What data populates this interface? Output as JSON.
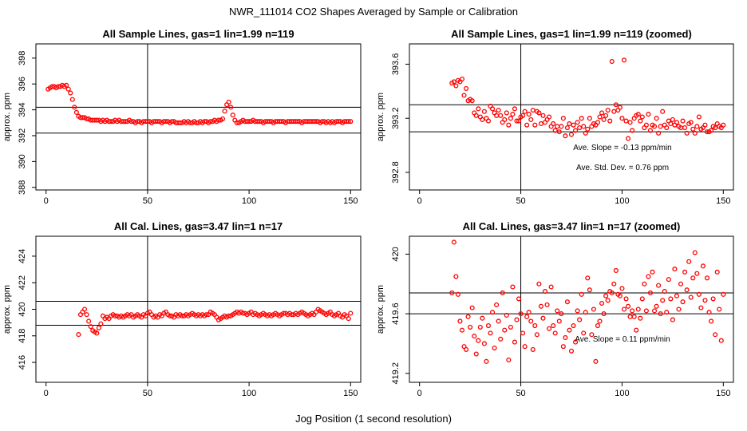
{
  "figure": {
    "title": "NWR_111014  CO2 Shapes Averaged by Sample or Calibration",
    "xlabel": "Jog Position (1 second resolution)"
  },
  "colors": {
    "points": "#ff0000",
    "lines": "#000000",
    "background": "#ffffff"
  },
  "chart_data": [
    {
      "type": "scatter",
      "title": "All Sample Lines, gas=1 lin=1.99 n=119",
      "xlabel": "",
      "ylabel": "approx. ppm",
      "xlim": [
        -5,
        155
      ],
      "ylim": [
        387.8,
        399.1
      ],
      "xticks": [
        0,
        50,
        100,
        150
      ],
      "yticks": [
        388,
        390,
        392,
        394,
        396,
        398
      ],
      "vline": 50,
      "hlines": [
        392.2,
        394.2
      ],
      "annotations": [],
      "series": [
        {
          "x_range": [
            1,
            150
          ],
          "y": [
            395.6,
            395.7,
            395.8,
            395.8,
            395.7,
            395.8,
            395.8,
            395.9,
            395.8,
            395.9,
            395.6,
            395.3,
            394.8,
            394.2,
            393.8,
            393.5,
            393.4,
            393.4,
            393.4,
            393.3,
            393.3,
            393.2,
            393.2,
            393.2,
            393.2,
            393.2,
            393.1,
            393.2,
            393.1,
            393.2,
            393.1,
            393.1,
            393.1,
            393.2,
            393.1,
            393.2,
            393.1,
            393.1,
            393.1,
            393.1,
            393.2,
            393.1,
            393.1,
            393.0,
            393.1,
            393.1,
            393.0,
            393.1,
            393.1,
            393.1,
            393.1,
            393.0,
            393.1,
            393.1,
            393.1,
            393.1,
            393.0,
            393.1,
            393.1,
            393.1,
            393.0,
            393.1,
            393.1,
            393.0,
            393.0,
            393.0,
            393.0,
            393.1,
            393.0,
            393.1,
            393.0,
            393.0,
            393.1,
            393.0,
            393.0,
            393.1,
            393.0,
            393.1,
            393.1,
            393.0,
            393.1,
            393.1,
            393.2,
            393.1,
            393.2,
            393.2,
            393.3,
            393.9,
            394.4,
            394.6,
            394.2,
            393.6,
            393.2,
            393.0,
            393.0,
            393.1,
            393.2,
            393.1,
            393.1,
            393.1,
            393.1,
            393.2,
            393.1,
            393.1,
            393.1,
            393.1,
            393.0,
            393.1,
            393.1,
            393.1,
            393.1,
            393.0,
            393.1,
            393.1,
            393.1,
            393.1,
            393.1,
            393.0,
            393.1,
            393.1,
            393.1,
            393.1,
            393.1,
            393.1,
            393.1,
            393.0,
            393.1,
            393.1,
            393.1,
            393.1,
            393.1,
            393.1,
            393.1,
            393.1,
            393.0,
            393.1,
            393.1,
            393.0,
            393.1,
            393.0,
            393.1,
            393.0,
            393.1,
            393.1,
            393.1,
            393.0,
            393.1,
            393.1,
            393.1,
            393.1
          ]
        }
      ]
    },
    {
      "type": "scatter",
      "title": "All Sample Lines, gas=1 lin=1.99 n=119 (zoomed)",
      "xlabel": "",
      "ylabel": "approx. ppm",
      "xlim": [
        -5,
        155
      ],
      "ylim": [
        392.67,
        393.75
      ],
      "xticks": [
        0,
        50,
        100,
        150
      ],
      "yticks": [
        392.8,
        393.2,
        393.6
      ],
      "vline": 50,
      "hlines": [
        393.1,
        393.3
      ],
      "annotations": [
        "Ave. Slope =  -0.13  ppm/min",
        "Ave. Std. Dev. =  0.76  ppm"
      ],
      "series": [
        {
          "x_range": [
            16,
            150
          ],
          "y": [
            393.46,
            393.47,
            393.44,
            393.48,
            393.47,
            393.49,
            393.37,
            393.42,
            393.33,
            393.34,
            393.33,
            393.24,
            393.22,
            393.27,
            393.21,
            393.19,
            393.25,
            393.2,
            393.18,
            393.29,
            393.27,
            393.24,
            393.22,
            393.26,
            393.22,
            393.17,
            393.19,
            393.24,
            393.15,
            393.2,
            393.23,
            393.27,
            393.18,
            393.18,
            393.21,
            393.22,
            393.25,
            393.15,
            393.23,
            393.19,
            393.26,
            393.15,
            393.25,
            393.24,
            393.16,
            393.22,
            393.17,
            393.19,
            393.21,
            393.14,
            393.16,
            393.11,
            393.14,
            393.1,
            393.14,
            393.2,
            393.07,
            393.13,
            393.16,
            393.08,
            393.15,
            393.11,
            393.17,
            393.13,
            393.2,
            393.14,
            393.09,
            393.12,
            393.2,
            393.14,
            393.16,
            393.15,
            393.17,
            393.21,
            393.24,
            393.19,
            393.22,
            393.26,
            393.18,
            393.62,
            393.25,
            393.3,
            393.26,
            393.28,
            393.2,
            393.63,
            393.18,
            393.05,
            393.17,
            393.11,
            393.2,
            393.22,
            393.23,
            393.18,
            393.21,
            393.13,
            393.15,
            393.23,
            393.11,
            393.15,
            393.14,
            393.2,
            393.09,
            393.14,
            393.25,
            393.15,
            393.13,
            393.18,
            393.16,
            393.19,
            393.15,
            393.17,
            393.14,
            393.13,
            393.18,
            393.13,
            393.09,
            393.16,
            393.17,
            393.12,
            393.09,
            393.14,
            393.21,
            393.12,
            393.13,
            393.15,
            393.1,
            393.1,
            393.11,
            393.14,
            393.13,
            393.16,
            393.14,
            393.13,
            393.15
          ]
        }
      ]
    },
    {
      "type": "scatter",
      "title": "All Cal. Lines, gas=3.47 lin=1 n=17",
      "xlabel": "",
      "ylabel": "approx. ppm",
      "xlim": [
        -5,
        155
      ],
      "ylim": [
        414.5,
        425.5
      ],
      "xticks": [
        0,
        50,
        100,
        150
      ],
      "yticks": [
        416,
        418,
        420,
        422,
        424
      ],
      "vline": 50,
      "hlines": [
        418.8,
        420.6
      ],
      "annotations": [],
      "series": [
        {
          "x_range": [
            16,
            150
          ],
          "y": [
            418.1,
            419.6,
            419.8,
            420.0,
            419.6,
            419.1,
            418.7,
            418.4,
            418.3,
            418.2,
            418.6,
            418.9,
            419.5,
            419.3,
            419.4,
            419.3,
            419.5,
            419.6,
            419.5,
            419.5,
            419.4,
            419.5,
            419.4,
            419.5,
            419.6,
            419.5,
            419.6,
            419.4,
            419.5,
            419.6,
            419.5,
            419.4,
            419.6,
            419.5,
            419.7,
            419.8,
            419.6,
            419.4,
            419.5,
            419.4,
            419.6,
            419.5,
            419.7,
            419.8,
            419.6,
            419.5,
            419.5,
            419.4,
            419.6,
            419.5,
            419.6,
            419.5,
            419.5,
            419.6,
            419.5,
            419.6,
            419.7,
            419.6,
            419.5,
            419.6,
            419.5,
            419.6,
            419.5,
            419.6,
            419.6,
            419.8,
            419.7,
            419.6,
            419.4,
            419.2,
            419.3,
            419.4,
            419.5,
            419.4,
            419.5,
            419.5,
            419.6,
            419.7,
            419.8,
            419.7,
            419.8,
            419.7,
            419.7,
            419.6,
            419.7,
            419.8,
            419.6,
            419.7,
            419.6,
            419.5,
            419.6,
            419.7,
            419.6,
            419.5,
            419.6,
            419.5,
            419.6,
            419.7,
            419.6,
            419.5,
            419.6,
            419.7,
            419.7,
            419.6,
            419.7,
            419.6,
            419.6,
            419.7,
            419.6,
            419.7,
            419.8,
            419.7,
            419.6,
            419.5,
            419.6,
            419.7,
            419.6,
            419.8,
            420.0,
            419.9,
            419.8,
            419.7,
            419.6,
            419.7,
            419.8,
            419.6,
            419.5,
            419.6,
            419.7,
            419.5,
            419.4,
            419.6,
            419.5,
            419.3,
            419.7
          ]
        }
      ]
    },
    {
      "type": "scatter",
      "title": "All Cal. Lines, gas=3.47 lin=1 n=17 (zoomed)",
      "xlabel": "",
      "ylabel": "approx. ppm",
      "xlim": [
        -5,
        155
      ],
      "ylim": [
        419.14,
        420.12
      ],
      "xticks": [
        0,
        50,
        100,
        150
      ],
      "yticks": [
        419.2,
        419.6,
        420.0
      ],
      "vline": 50,
      "hlines": [
        419.6,
        419.74
      ],
      "annotations": [
        "Ave. Slope =  0.11  ppm/min"
      ],
      "series": [
        {
          "x_range": [
            16,
            150
          ],
          "y": [
            419.74,
            420.08,
            419.85,
            419.73,
            419.55,
            419.49,
            419.38,
            419.36,
            419.58,
            419.51,
            419.64,
            419.45,
            419.33,
            419.42,
            419.51,
            419.57,
            419.4,
            419.28,
            419.52,
            419.47,
            419.61,
            419.37,
            419.66,
            419.55,
            419.43,
            419.74,
            419.49,
            419.59,
            419.29,
            419.51,
            419.78,
            419.41,
            419.56,
            419.7,
            419.6,
            419.47,
            419.38,
            419.58,
            419.61,
            419.55,
            419.36,
            419.52,
            419.46,
            419.8,
            419.65,
            419.57,
            419.75,
            419.66,
            419.5,
            419.78,
            419.52,
            419.47,
            419.62,
            419.55,
            419.6,
            419.38,
            419.44,
            419.68,
            419.49,
            419.35,
            419.52,
            419.41,
            419.62,
            419.56,
            419.73,
            419.47,
            419.61,
            419.84,
            419.76,
            419.46,
            419.63,
            419.28,
            419.52,
            419.55,
            419.67,
            419.6,
            419.72,
            419.69,
            419.75,
            419.74,
            419.8,
            419.89,
            419.73,
            419.72,
            419.77,
            419.63,
            419.7,
            419.65,
            419.58,
            419.62,
            419.58,
            419.49,
            419.63,
            419.57,
            419.7,
            419.8,
            419.62,
            419.85,
            419.74,
            419.88,
            419.62,
            419.65,
            419.79,
            419.6,
            419.69,
            419.75,
            419.61,
            419.83,
            419.7,
            419.56,
            419.9,
            419.72,
            419.63,
            419.8,
            419.68,
            419.88,
            419.76,
            419.95,
            419.71,
            419.84,
            420.01,
            419.87,
            419.73,
            419.64,
            419.92,
            419.69,
            419.84,
            419.61,
            419.55,
            419.7,
            419.46,
            419.88,
            419.63,
            419.42,
            419.73
          ]
        }
      ]
    }
  ]
}
